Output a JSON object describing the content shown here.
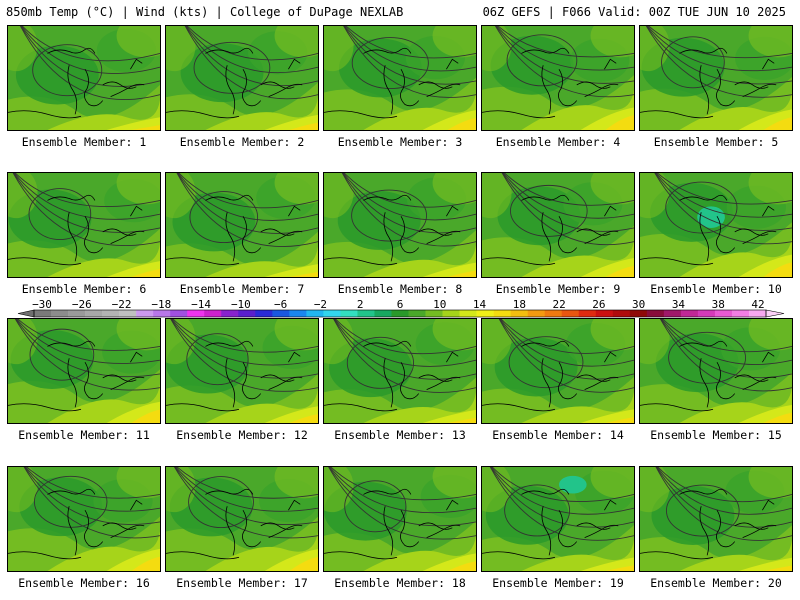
{
  "header": {
    "left_title": "850mb Temp (°C) | Wind (kts) | College of DuPage NEXLAB",
    "right_title": "06Z GEFS | F066 Valid: 00Z TUE JUN 10 2025"
  },
  "panels": [
    {
      "label": "Ensemble Member: 1"
    },
    {
      "label": "Ensemble Member: 2"
    },
    {
      "label": "Ensemble Member: 3"
    },
    {
      "label": "Ensemble Member: 4"
    },
    {
      "label": "Ensemble Member: 5"
    },
    {
      "label": "Ensemble Member: 6"
    },
    {
      "label": "Ensemble Member: 7"
    },
    {
      "label": "Ensemble Member: 8"
    },
    {
      "label": "Ensemble Member: 9"
    },
    {
      "label": "Ensemble Member: 10"
    },
    {
      "label": "Ensemble Member: 11"
    },
    {
      "label": "Ensemble Member: 12"
    },
    {
      "label": "Ensemble Member: 13"
    },
    {
      "label": "Ensemble Member: 14"
    },
    {
      "label": "Ensemble Member: 15"
    },
    {
      "label": "Ensemble Member: 16"
    },
    {
      "label": "Ensemble Member: 17"
    },
    {
      "label": "Ensemble Member: 18"
    },
    {
      "label": "Ensemble Member: 19"
    },
    {
      "label": "Ensemble Member: 20"
    }
  ],
  "colorbar": {
    "tick_labels": [
      "−30",
      "−26",
      "−22",
      "−18",
      "−14",
      "−10",
      "−6",
      "−2",
      "2",
      "6",
      "10",
      "14",
      "18",
      "22",
      "26",
      "30",
      "34",
      "38",
      "42"
    ],
    "colors": [
      "#7a7a7a",
      "#8c8c8c",
      "#9a9a9a",
      "#a8a8a8",
      "#b4b4b4",
      "#c0c0c0",
      "#cc99ee",
      "#b877e8",
      "#a050e0",
      "#ee33ee",
      "#cc22cc",
      "#8822cc",
      "#5a1fcc",
      "#2a2ad6",
      "#1a57e0",
      "#1a86ee",
      "#22b6f0",
      "#33d6ee",
      "#33e0c0",
      "#22c48a",
      "#18a860",
      "#2a9a2a",
      "#4aa82a",
      "#74bc22",
      "#a6d41a",
      "#d4e81a",
      "#f0f018",
      "#f4dc10",
      "#f4be10",
      "#f49a10",
      "#f07a10",
      "#ea5610",
      "#e02a10",
      "#cc1010",
      "#b00c0c",
      "#8e0808",
      "#880c3a",
      "#a0186a",
      "#c02896",
      "#d43ab8",
      "#e85ad2",
      "#f27ee4",
      "#f8a8f0"
    ]
  }
}
